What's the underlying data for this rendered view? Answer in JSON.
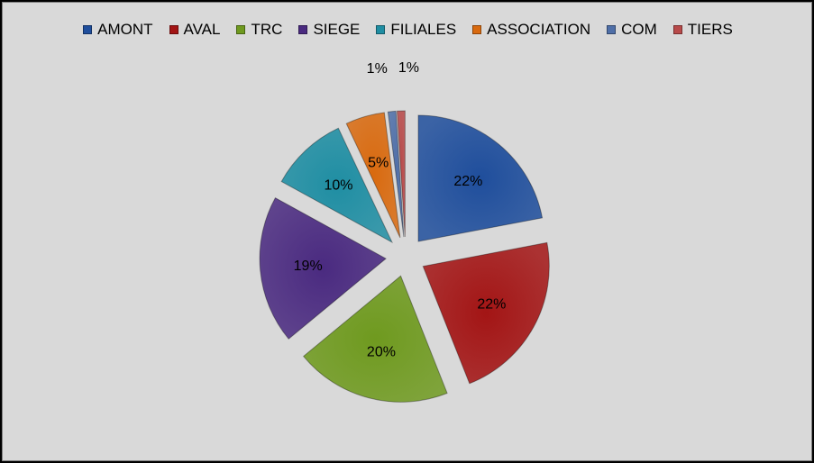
{
  "chart_data": {
    "type": "pie",
    "title": "",
    "legend_position": "top",
    "slices": [
      {
        "label": "AMONT",
        "value": 22,
        "value_label": "22%",
        "color": "#1f4e9c"
      },
      {
        "label": "AVAL",
        "value": 22,
        "value_label": "22%",
        "color": "#a31515"
      },
      {
        "label": "TRC",
        "value": 20,
        "value_label": "20%",
        "color": "#6f9a1f"
      },
      {
        "label": "SIEGE",
        "value": 19,
        "value_label": "19%",
        "color": "#4a2a80"
      },
      {
        "label": "FILIALES",
        "value": 10,
        "value_label": "10%",
        "color": "#1f8ea3"
      },
      {
        "label": "ASSOCIATION",
        "value": 5,
        "value_label": "5%",
        "color": "#d96a0f"
      },
      {
        "label": "COM",
        "value": 1,
        "value_label": "1%",
        "color": "#4f6fa8"
      },
      {
        "label": "TIERS",
        "value": 1,
        "value_label": "1%",
        "color": "#b84a4a"
      }
    ]
  }
}
